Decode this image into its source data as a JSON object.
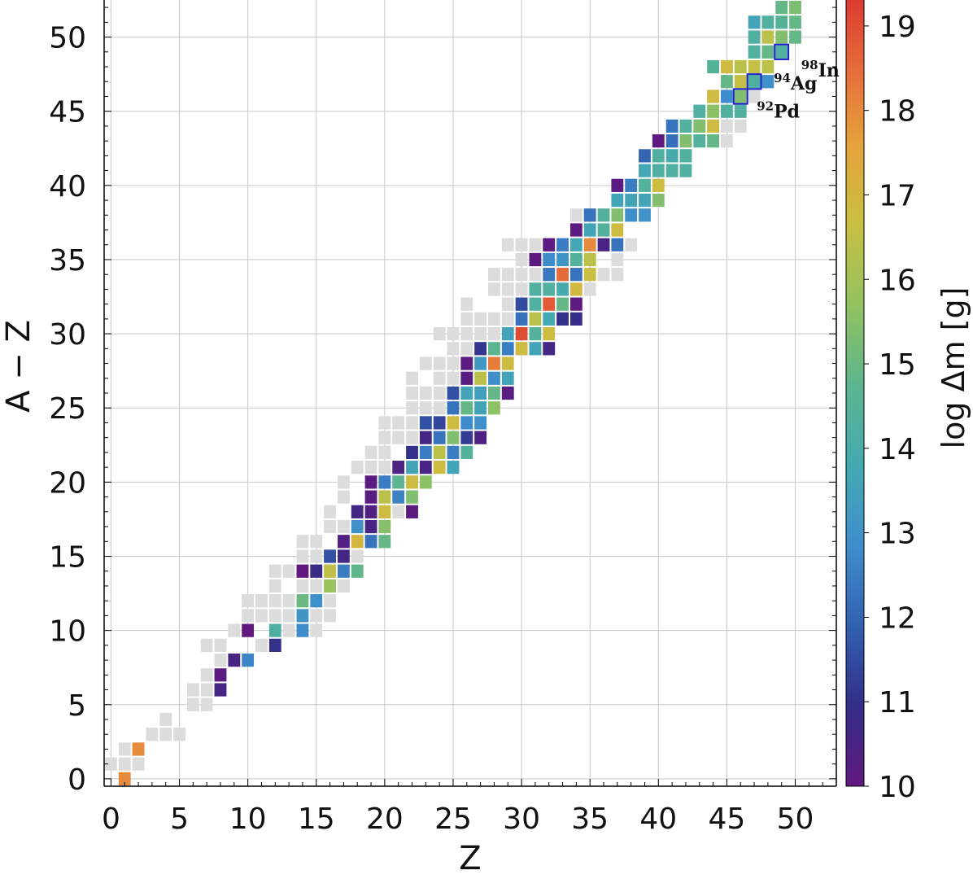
{
  "chart_data": {
    "type": "heatmap",
    "xlabel": "Z",
    "ylabel": "A − Z",
    "xlim": [
      -0.5,
      53
    ],
    "ylim": [
      -0.5,
      52.5
    ],
    "x_ticks": [
      "0",
      "5",
      "10",
      "15",
      "20",
      "25",
      "30",
      "35",
      "40",
      "45",
      "50"
    ],
    "y_ticks": [
      "0",
      "5",
      "10",
      "15",
      "20",
      "25",
      "30",
      "35",
      "40",
      "45",
      "50"
    ],
    "grid": true,
    "colorbar": {
      "label": "log Δm [g]",
      "range": [
        10,
        19.5
      ],
      "ticks": [
        "10",
        "11",
        "12",
        "13",
        "14",
        "15",
        "16",
        "17",
        "18",
        "19"
      ],
      "colormap": [
        "#61197f",
        "#332e88",
        "#3260b0",
        "#3f8ecc",
        "#44aab2",
        "#5db58e",
        "#93c260",
        "#c8c043",
        "#e6a23c",
        "#e6683a",
        "#da2f2f"
      ]
    },
    "no_data_color": "#dcdcdc",
    "grey_cells": [
      [
        0,
        1
      ],
      [
        1,
        1
      ],
      [
        2,
        1
      ],
      [
        1,
        2
      ],
      [
        3,
        3
      ],
      [
        4,
        3
      ],
      [
        5,
        3
      ],
      [
        4,
        4
      ],
      [
        6,
        5
      ],
      [
        7,
        5
      ],
      [
        6,
        6
      ],
      [
        7,
        6
      ],
      [
        7,
        7
      ],
      [
        8,
        8
      ],
      [
        9,
        8
      ],
      [
        7,
        9
      ],
      [
        8,
        9
      ],
      [
        11,
        9
      ],
      [
        9,
        10
      ],
      [
        13,
        10
      ],
      [
        14,
        10
      ],
      [
        15,
        10
      ],
      [
        10,
        11
      ],
      [
        11,
        11
      ],
      [
        12,
        11
      ],
      [
        13,
        11
      ],
      [
        15,
        11
      ],
      [
        16,
        11
      ],
      [
        10,
        12
      ],
      [
        11,
        12
      ],
      [
        12,
        12
      ],
      [
        13,
        12
      ],
      [
        16,
        12
      ],
      [
        12,
        13
      ],
      [
        14,
        13
      ],
      [
        15,
        13
      ],
      [
        16,
        13
      ],
      [
        17,
        13
      ],
      [
        12,
        14
      ],
      [
        13,
        14
      ],
      [
        14,
        14
      ],
      [
        15,
        14
      ],
      [
        16,
        14
      ],
      [
        14,
        15
      ],
      [
        15,
        15
      ],
      [
        16,
        15
      ],
      [
        18,
        15
      ],
      [
        14,
        16
      ],
      [
        15,
        16
      ],
      [
        19,
        16
      ],
      [
        16,
        17
      ],
      [
        17,
        17
      ],
      [
        16,
        18
      ],
      [
        21,
        18
      ],
      [
        17,
        19
      ],
      [
        19,
        19
      ],
      [
        17,
        20
      ],
      [
        18,
        21
      ],
      [
        19,
        21
      ],
      [
        20,
        21
      ],
      [
        19,
        22
      ],
      [
        20,
        22
      ],
      [
        20,
        23
      ],
      [
        21,
        23
      ],
      [
        22,
        23
      ],
      [
        20,
        24
      ],
      [
        21,
        24
      ],
      [
        22,
        24
      ],
      [
        23,
        24
      ],
      [
        22,
        25
      ],
      [
        23,
        25
      ],
      [
        24,
        25
      ],
      [
        22,
        26
      ],
      [
        23,
        26
      ],
      [
        24,
        26
      ],
      [
        29,
        26
      ],
      [
        22,
        27
      ],
      [
        24,
        27
      ],
      [
        25,
        27
      ],
      [
        23,
        28
      ],
      [
        24,
        28
      ],
      [
        25,
        28
      ],
      [
        26,
        28
      ],
      [
        25,
        29
      ],
      [
        26,
        29
      ],
      [
        30,
        29
      ],
      [
        31,
        29
      ],
      [
        32,
        29
      ],
      [
        24,
        30
      ],
      [
        25,
        30
      ],
      [
        26,
        30
      ],
      [
        27,
        30
      ],
      [
        28,
        30
      ],
      [
        26,
        31
      ],
      [
        27,
        31
      ],
      [
        28,
        31
      ],
      [
        29,
        31
      ],
      [
        26,
        32
      ],
      [
        29,
        32
      ],
      [
        30,
        32
      ],
      [
        28,
        33
      ],
      [
        29,
        33
      ],
      [
        30,
        33
      ],
      [
        31,
        33
      ],
      [
        32,
        33
      ],
      [
        33,
        33
      ],
      [
        35,
        33
      ],
      [
        28,
        34
      ],
      [
        29,
        34
      ],
      [
        30,
        34
      ],
      [
        31,
        34
      ],
      [
        32,
        34
      ],
      [
        36,
        34
      ],
      [
        37,
        34
      ],
      [
        30,
        35
      ],
      [
        31,
        35
      ],
      [
        32,
        35
      ],
      [
        37,
        35
      ],
      [
        29,
        36
      ],
      [
        30,
        36
      ],
      [
        31,
        36
      ],
      [
        32,
        36
      ],
      [
        33,
        36
      ],
      [
        38,
        36
      ],
      [
        34,
        38
      ],
      [
        35,
        38
      ],
      [
        41,
        41
      ],
      [
        40,
        42
      ],
      [
        41,
        42
      ],
      [
        42,
        42
      ],
      [
        44,
        43
      ],
      [
        45,
        43
      ],
      [
        43,
        44
      ],
      [
        44,
        44
      ],
      [
        45,
        44
      ],
      [
        46,
        44
      ],
      [
        44,
        46
      ],
      [
        47,
        46
      ],
      [
        47,
        47
      ],
      [
        48,
        47
      ],
      [
        45,
        48
      ],
      [
        46,
        48
      ],
      [
        47,
        49
      ],
      [
        48,
        53
      ],
      [
        49,
        53
      ]
    ],
    "colored_cells": [
      [
        1,
        0,
        18.0
      ],
      [
        2,
        2,
        18.0
      ],
      [
        8,
        6,
        10.6
      ],
      [
        8,
        7,
        10.1
      ],
      [
        9,
        8,
        10.5
      ],
      [
        10,
        8,
        12.7
      ],
      [
        12,
        9,
        11.0
      ],
      [
        10,
        10,
        10.0
      ],
      [
        12,
        10,
        14.2
      ],
      [
        14,
        10,
        12.8
      ],
      [
        14,
        11,
        13.1
      ],
      [
        14,
        12,
        15.0
      ],
      [
        15,
        12,
        12.9
      ],
      [
        16,
        13,
        15.8
      ],
      [
        14,
        14,
        10.0
      ],
      [
        15,
        14,
        10.8
      ],
      [
        16,
        14,
        16.5
      ],
      [
        17,
        14,
        12.5
      ],
      [
        18,
        14,
        14.8
      ],
      [
        16,
        15,
        11.6
      ],
      [
        17,
        15,
        10.6
      ],
      [
        17,
        16,
        10.3
      ],
      [
        18,
        16,
        17.0
      ],
      [
        19,
        16,
        12.3
      ],
      [
        20,
        16,
        14.9
      ],
      [
        18,
        17,
        12.9
      ],
      [
        19,
        17,
        10.5
      ],
      [
        20,
        17,
        15.5
      ],
      [
        18,
        18,
        10.6
      ],
      [
        19,
        18,
        10.3
      ],
      [
        20,
        18,
        16.8
      ],
      [
        22,
        18,
        10.1
      ],
      [
        19,
        19,
        10.2
      ],
      [
        20,
        19,
        16.4
      ],
      [
        21,
        19,
        12.6
      ],
      [
        22,
        19,
        15.4
      ],
      [
        19,
        20,
        10.1
      ],
      [
        20,
        20,
        12.5
      ],
      [
        21,
        20,
        14.7
      ],
      [
        22,
        20,
        16.8
      ],
      [
        23,
        20,
        15.6
      ],
      [
        21,
        21,
        10.4
      ],
      [
        22,
        21,
        13.6
      ],
      [
        23,
        21,
        10.5
      ],
      [
        24,
        21,
        16.8
      ],
      [
        25,
        21,
        13.6
      ],
      [
        22,
        22,
        11.0
      ],
      [
        23,
        22,
        12.5
      ],
      [
        24,
        22,
        16.4
      ],
      [
        25,
        22,
        12.5
      ],
      [
        26,
        22,
        14.4
      ],
      [
        23,
        23,
        10.6
      ],
      [
        24,
        23,
        12.3
      ],
      [
        25,
        23,
        15.4
      ],
      [
        26,
        23,
        11.2
      ],
      [
        27,
        23,
        10.4
      ],
      [
        23,
        24,
        11.6
      ],
      [
        24,
        24,
        11.4
      ],
      [
        25,
        24,
        16.8
      ],
      [
        26,
        24,
        12.8
      ],
      [
        27,
        24,
        12.9
      ],
      [
        25,
        25,
        12.3
      ],
      [
        26,
        25,
        14.9
      ],
      [
        27,
        25,
        13.6
      ],
      [
        28,
        25,
        15.6
      ],
      [
        25,
        26,
        11.6
      ],
      [
        26,
        26,
        13.6
      ],
      [
        27,
        26,
        13.4
      ],
      [
        28,
        26,
        14.9
      ],
      [
        29,
        26,
        10.2
      ],
      [
        26,
        27,
        10.2
      ],
      [
        27,
        27,
        16.4
      ],
      [
        28,
        27,
        12.9
      ],
      [
        29,
        27,
        13.6
      ],
      [
        26,
        28,
        10.1
      ],
      [
        27,
        28,
        13.2
      ],
      [
        28,
        28,
        18.2
      ],
      [
        29,
        28,
        16.8
      ],
      [
        27,
        29,
        11.1
      ],
      [
        28,
        29,
        14.7
      ],
      [
        29,
        29,
        12.5
      ],
      [
        30,
        29,
        16.8
      ],
      [
        31,
        29,
        13.6
      ],
      [
        32,
        29,
        10.6
      ],
      [
        29,
        30,
        13.6
      ],
      [
        30,
        30,
        19.0
      ],
      [
        31,
        30,
        14.4
      ],
      [
        32,
        30,
        16.8
      ],
      [
        30,
        31,
        12.3
      ],
      [
        31,
        31,
        16.4
      ],
      [
        32,
        31,
        13.8
      ],
      [
        33,
        31,
        11.0
      ],
      [
        34,
        31,
        10.9
      ],
      [
        30,
        32,
        11.5
      ],
      [
        31,
        32,
        14.3
      ],
      [
        32,
        32,
        18.8
      ],
      [
        33,
        32,
        14.9
      ],
      [
        34,
        32,
        10.1
      ],
      [
        31,
        33,
        14.3
      ],
      [
        32,
        33,
        14.3
      ],
      [
        33,
        33,
        13.9
      ],
      [
        34,
        33,
        16.9
      ],
      [
        32,
        34,
        12.4
      ],
      [
        33,
        34,
        18.5
      ],
      [
        34,
        34,
        12.3
      ],
      [
        35,
        34,
        16.7
      ],
      [
        31,
        35,
        10.1
      ],
      [
        32,
        35,
        12.8
      ],
      [
        33,
        35,
        13.1
      ],
      [
        34,
        35,
        14.4
      ],
      [
        35,
        35,
        16.4
      ],
      [
        32,
        36,
        10.1
      ],
      [
        33,
        36,
        12.5
      ],
      [
        34,
        36,
        13.7
      ],
      [
        35,
        36,
        18.0
      ],
      [
        36,
        36,
        10.5
      ],
      [
        37,
        36,
        12.3
      ],
      [
        34,
        37,
        10.1
      ],
      [
        35,
        37,
        13.6
      ],
      [
        36,
        37,
        14.4
      ],
      [
        37,
        37,
        16.8
      ],
      [
        35,
        38,
        12.3
      ],
      [
        36,
        38,
        14.4
      ],
      [
        37,
        38,
        15.4
      ],
      [
        38,
        38,
        12.9
      ],
      [
        39,
        38,
        13.0
      ],
      [
        37,
        39,
        13.6
      ],
      [
        38,
        39,
        13.6
      ],
      [
        39,
        39,
        13.6
      ],
      [
        40,
        39,
        15.4
      ],
      [
        37,
        40,
        10.1
      ],
      [
        38,
        40,
        12.5
      ],
      [
        39,
        40,
        14.4
      ],
      [
        40,
        40,
        16.8
      ],
      [
        39,
        41,
        13.7
      ],
      [
        40,
        41,
        14.3
      ],
      [
        41,
        41,
        14.3
      ],
      [
        42,
        41,
        14.3
      ],
      [
        39,
        42,
        12.0
      ],
      [
        40,
        42,
        14.3
      ],
      [
        41,
        42,
        13.9
      ],
      [
        42,
        42,
        14.3
      ],
      [
        40,
        43,
        10.0
      ],
      [
        41,
        43,
        12.2
      ],
      [
        42,
        43,
        15.4
      ],
      [
        43,
        43,
        14.4
      ],
      [
        44,
        43,
        14.9
      ],
      [
        41,
        44,
        12.3
      ],
      [
        42,
        44,
        14.4
      ],
      [
        43,
        44,
        15.4
      ],
      [
        44,
        44,
        16.8
      ],
      [
        43,
        45,
        14.3
      ],
      [
        44,
        45,
        15.6
      ],
      [
        45,
        45,
        14.3
      ],
      [
        46,
        45,
        14.3
      ],
      [
        44,
        46,
        16.8
      ],
      [
        45,
        46,
        12.8
      ],
      [
        46,
        46,
        15.4
      ],
      [
        45,
        47,
        14.9
      ],
      [
        46,
        47,
        16.6
      ],
      [
        47,
        47,
        14.2
      ],
      [
        48,
        47,
        12.9
      ],
      [
        44,
        48,
        14.5
      ],
      [
        45,
        48,
        16.8
      ],
      [
        46,
        48,
        16.4
      ],
      [
        47,
        48,
        16.6
      ],
      [
        48,
        48,
        16.4
      ],
      [
        47,
        49,
        14.3
      ],
      [
        48,
        49,
        14.9
      ],
      [
        49,
        49,
        14.3
      ],
      [
        47,
        50,
        14.3
      ],
      [
        48,
        50,
        16.4
      ],
      [
        49,
        50,
        15.4
      ],
      [
        50,
        50,
        14.9
      ],
      [
        47,
        51,
        13.6
      ],
      [
        48,
        51,
        14.3
      ],
      [
        49,
        51,
        14.5
      ],
      [
        50,
        51,
        14.9
      ],
      [
        49,
        52,
        14.9
      ],
      [
        50,
        52,
        15.3
      ],
      [
        49,
        53,
        14.9
      ],
      [
        50,
        53,
        15.4
      ]
    ],
    "highlighted": [
      {
        "label": "Pd",
        "mass": "92",
        "z": 46,
        "n": 46
      },
      {
        "label": "Ag",
        "mass": "94",
        "z": 47,
        "n": 47
      },
      {
        "label": "In",
        "mass": "98",
        "z": 49,
        "n": 49
      }
    ]
  }
}
